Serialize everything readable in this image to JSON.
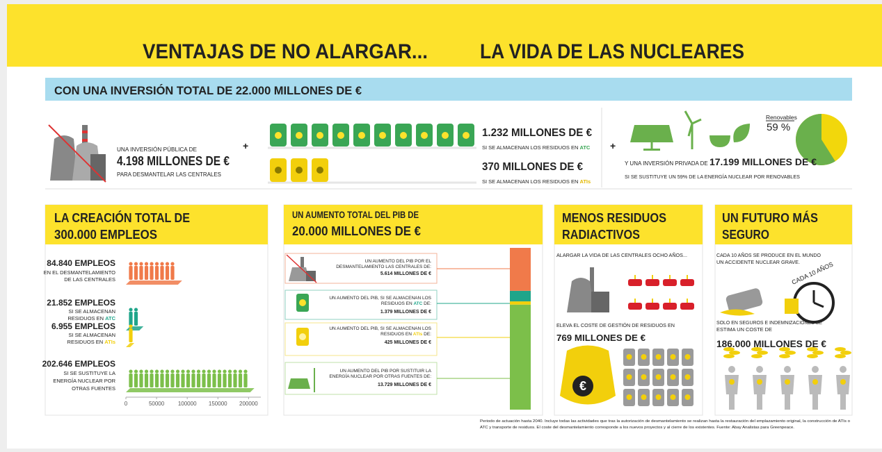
{
  "header": {
    "title_left": "VENTAJAS DE NO ALARGAR...",
    "title_right": "LA VIDA DE LAS NUCLEARES"
  },
  "investment": {
    "banner": "CON UNA INVERSIÓN TOTAL DE 22.000 MILLONES DE €",
    "public": {
      "pre": "UNA INVERSIÓN PÚBLICA DE",
      "amount": "4.198 MILLONES DE €",
      "post": "PARA DESMANTELAR LAS CENTRALES"
    },
    "plus": "+",
    "atc": {
      "amount": "1.232 MILLONES DE €",
      "note": "SI SE ALMACENAN LOS RESIDUOS EN ",
      "place": "ATC"
    },
    "ati": {
      "amount": "370 MILLONES DE €",
      "note": "SI SE ALMACENAN LOS RESIDUOS EN ",
      "place": "ATIs"
    },
    "private": {
      "pre": "Y UNA INVERSIÓN PRIVADA DE ",
      "amount": "17.199 MILLONES DE €",
      "note": "SI SE SUSTITUYE UN  59% DE LA ENERGÍA NUCLEAR POR RENOVABLES"
    },
    "pie": {
      "label": "Renovables",
      "value": 59,
      "value_label": "59 %"
    }
  },
  "jobs": {
    "title": [
      "LA CREACIÓN TOTAL DE",
      "300.000 EMPLEOS"
    ],
    "items": [
      {
        "amount": "84.840 EMPLEOS",
        "lines": [
          "EN EL DESMANTELAMIENTO",
          "DE LAS CENTRALES"
        ],
        "value": 84840,
        "color": "#f07a4a"
      },
      {
        "amount": "21.852 EMPLEOS",
        "lines": [
          "SI SE ALMACENAN",
          "RESIDUOS EN "
        ],
        "place": "ATC",
        "value": 21852,
        "color": "#1fa58a"
      },
      {
        "amount": "6.955 EMPLEOS",
        "lines": [
          "SI SE ALMACENAN",
          "RESIDUOS EN "
        ],
        "place": "ATIs",
        "value": 6955,
        "color": "#f2cf0c"
      },
      {
        "amount": "202.646 EMPLEOS",
        "lines": [
          "SI SE SUSTITUYE LA",
          "ENERGÍA NUCLEAR POR",
          "OTRAS FUENTES"
        ],
        "value": 202646,
        "color": "#7cbf4a"
      }
    ],
    "xlim": [
      0,
      220000
    ],
    "xticks": [
      0,
      50000,
      100000,
      150000,
      200000
    ]
  },
  "gdp": {
    "title": [
      "UN AUMENTO TOTAL DEL PIB DE",
      "20.000 MILLONES DE €"
    ],
    "items": [
      {
        "lines": [
          "UN AUMENTO DEL PIB POR EL",
          "DESMANTELAMIENTO LAS CENTRALES DE:"
        ],
        "amount": "5.614 MILLONES DE €",
        "value": 5614,
        "color": "#f07a4a"
      },
      {
        "lines": [
          "UN AUMENTO DEL PIB, SI SE ALMACENAN LOS",
          "RESIDUOS EN "
        ],
        "place": "ATC",
        "suffix": " DE:",
        "amount": "1.379 MILLONES DE €",
        "value": 1379,
        "color": "#1fa58a"
      },
      {
        "lines": [
          "UN AUMENTO DEL PIB, SI SE ALMACENAN LOS",
          "RESIDUOS EN "
        ],
        "place": "ATIs",
        "suffix": " DE:",
        "amount": "425 MILLONES DE €",
        "value": 425,
        "color": "#f2cf0c"
      },
      {
        "lines": [
          "UN AUMENTO DEL PIB POR SUSTITUIR LA",
          "ENERGÍA NUCLEAR POR OTRAS FUENTES DE:"
        ],
        "amount": "13.729 MILLONES DE €",
        "value": 13729,
        "color": "#7cbf4a"
      }
    ]
  },
  "waste": {
    "title": [
      "MENOS RESIDUOS",
      "RADIACTIVOS"
    ],
    "intro": "ALARGAR LA VIDA DE LAS CENTRALES OCHO AÑOS...",
    "cost": "ELEVA EL COSTE DE GESTIÓN DE RESIDUOS EN",
    "amount": "769 MILLONES DE €"
  },
  "safety": {
    "title": [
      "UN FUTURO MÁS",
      "SEGURO"
    ],
    "intro": [
      "CADA 10 AÑOS SE PRODUCE EN EL MUNDO",
      "UN ACCIDENTE NUCLEAR GRAVE."
    ],
    "clock": "CADA 10 AÑOS",
    "cost": [
      "SOLO EN SEGUROS E INDEMNIZACIONES SE",
      "ESTIMA UN COSTE DE"
    ],
    "amount": "186.000 MILLONES DE €"
  },
  "footnote": [
    "Periodo de actuación hasta 2040. Incluye todas las actividades que tras la autorización de desmantelamiento se realizan hasta la restauración del emplazamiento original, la construcción de ATIs o",
    "ATC y transporte de residuos. El coste del desmantelamiento corresponde a los nuevos proyectos y al cierre de los existentes. Fuente: Abay Analistas para Greenpeace."
  ]
}
